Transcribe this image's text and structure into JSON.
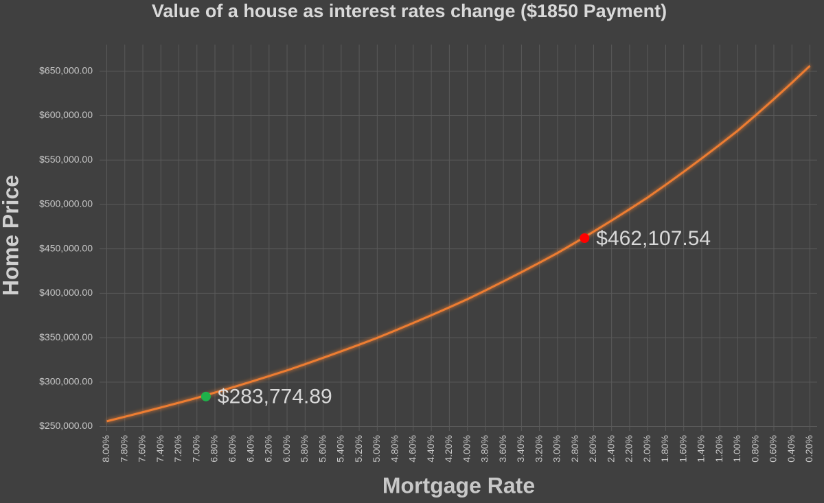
{
  "chart_data": {
    "type": "line",
    "title": "Value of a house as interest rates change ($1850 Payment)",
    "x_label": "Mortgage Rate",
    "y_label": "Home Price",
    "x": [
      8.0,
      7.8,
      7.6,
      7.4,
      7.2,
      7.0,
      6.8,
      6.6,
      6.4,
      6.2,
      6.0,
      5.8,
      5.6,
      5.4,
      5.2,
      5.0,
      4.8,
      4.6,
      4.4,
      4.2,
      4.0,
      3.8,
      3.6,
      3.4,
      3.2,
      3.0,
      2.8,
      2.6,
      2.4,
      2.2,
      2.0,
      1.8,
      1.6,
      1.4,
      1.2,
      1.0,
      0.8,
      0.6,
      0.4,
      0.2
    ],
    "series": [
      {
        "name": "Home Price",
        "color": "#ed7d31",
        "values": [
          255900,
          260970,
          266140,
          271410,
          276780,
          282240,
          288180,
          294240,
          300420,
          306740,
          313200,
          320190,
          327340,
          334650,
          342130,
          349790,
          358090,
          366580,
          375280,
          384190,
          393310,
          403220,
          413370,
          423780,
          434450,
          445380,
          457230,
          469400,
          481890,
          494710,
          507890,
          522150,
          536810,
          551880,
          567370,
          583200,
          600630,
          618570,
          637050,
          656100
        ]
      }
    ],
    "highlights": [
      {
        "x": 2.7,
        "value": 462107.54,
        "value_label": "$462,107.54",
        "color": "#ff0000"
      },
      {
        "x": 6.9,
        "value": 283774.89,
        "value_label": "$283,774.89",
        "color": "#1fb24a"
      }
    ],
    "xlim": [
      8.08,
      0.12
    ],
    "xticks": [
      {
        "value": 8.0,
        "label": "8.00%"
      },
      {
        "value": 7.8,
        "label": "7.80%"
      },
      {
        "value": 7.6,
        "label": "7.60%"
      },
      {
        "value": 7.4,
        "label": "7.40%"
      },
      {
        "value": 7.2,
        "label": "7.20%"
      },
      {
        "value": 7.0,
        "label": "7.00%"
      },
      {
        "value": 6.8,
        "label": "6.80%"
      },
      {
        "value": 6.6,
        "label": "6.60%"
      },
      {
        "value": 6.4,
        "label": "6.40%"
      },
      {
        "value": 6.2,
        "label": "6.20%"
      },
      {
        "value": 6.0,
        "label": "6.00%"
      },
      {
        "value": 5.8,
        "label": "5.80%"
      },
      {
        "value": 5.6,
        "label": "5.60%"
      },
      {
        "value": 5.4,
        "label": "5.40%"
      },
      {
        "value": 5.2,
        "label": "5.20%"
      },
      {
        "value": 5.0,
        "label": "5.00%"
      },
      {
        "value": 4.8,
        "label": "4.80%"
      },
      {
        "value": 4.6,
        "label": "4.60%"
      },
      {
        "value": 4.4,
        "label": "4.40%"
      },
      {
        "value": 4.2,
        "label": "4.20%"
      },
      {
        "value": 4.0,
        "label": "4.00%"
      },
      {
        "value": 3.8,
        "label": "3.80%"
      },
      {
        "value": 3.6,
        "label": "3.60%"
      },
      {
        "value": 3.4,
        "label": "3.40%"
      },
      {
        "value": 3.2,
        "label": "3.20%"
      },
      {
        "value": 3.0,
        "label": "3.00%"
      },
      {
        "value": 2.8,
        "label": "2.80%"
      },
      {
        "value": 2.6,
        "label": "2.60%"
      },
      {
        "value": 2.4,
        "label": "2.40%"
      },
      {
        "value": 2.2,
        "label": "2.20%"
      },
      {
        "value": 2.0,
        "label": "2.00%"
      },
      {
        "value": 1.8,
        "label": "1.80%"
      },
      {
        "value": 1.6,
        "label": "1.60%"
      },
      {
        "value": 1.4,
        "label": "1.40%"
      },
      {
        "value": 1.2,
        "label": "1.20%"
      },
      {
        "value": 1.0,
        "label": "1.00%"
      },
      {
        "value": 0.8,
        "label": "0.80%"
      },
      {
        "value": 0.6,
        "label": "0.60%"
      },
      {
        "value": 0.4,
        "label": "0.40%"
      },
      {
        "value": 0.2,
        "label": "0.20%"
      }
    ],
    "ylim": [
      245000,
      680000
    ],
    "yticks": [
      {
        "value": 250000,
        "label": "$250,000.00"
      },
      {
        "value": 300000,
        "label": "$300,000.00"
      },
      {
        "value": 350000,
        "label": "$350,000.00"
      },
      {
        "value": 400000,
        "label": "$400,000.00"
      },
      {
        "value": 450000,
        "label": "$450,000.00"
      },
      {
        "value": 500000,
        "label": "$500,000.00"
      },
      {
        "value": 550000,
        "label": "$550,000.00"
      },
      {
        "value": 600000,
        "label": "$600,000.00"
      },
      {
        "value": 650000,
        "label": "$650,000.00"
      }
    ],
    "grid": true
  }
}
